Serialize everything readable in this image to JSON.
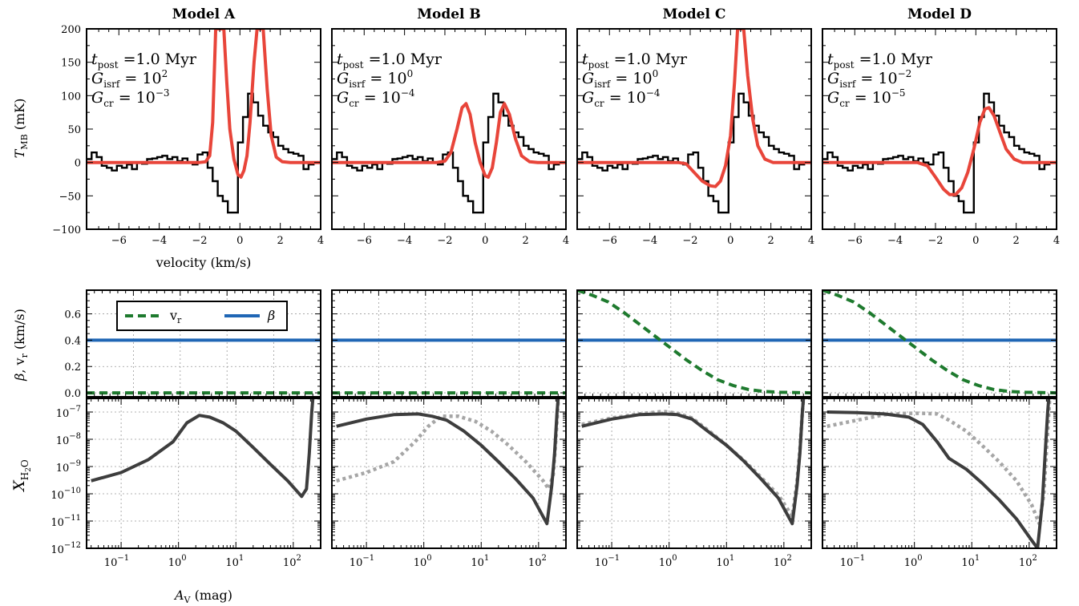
{
  "colors": {
    "model_line": "#e8453a",
    "observed": "#000000",
    "vr": "#1e7a2e",
    "beta": "#1f66b5",
    "x_solid": "#3d3d3d",
    "x_dotted": "#a6a6a6"
  },
  "axis_labels": {
    "top_y": "T_MB (mK)",
    "top_x": "velocity (km/s)",
    "mid_y": "β, v_r (km/s)",
    "bottom_y": "X_H2O",
    "bottom_x": "A_V (mag)"
  },
  "legend": {
    "vr": "v_r",
    "beta": "β",
    "position": "top-left (Model A middle panel)"
  },
  "ticks": {
    "velocity": [
      "−6",
      "−4",
      "−2",
      "0",
      "2",
      "4"
    ],
    "tmb": [
      "200",
      "150",
      "100",
      "50",
      "0",
      "−50",
      "−100"
    ],
    "mid": [
      "0.6",
      "0.4",
      "0.2",
      "0.0"
    ]
  },
  "chart_data": [
    {
      "type": "line",
      "title": "Model A",
      "annotation": {
        "t_post": "1.0 Myr",
        "g_isrf": "10^2",
        "g_cr": "10^-3"
      },
      "spectrum": {
        "xlim": [
          -7.6,
          4
        ],
        "ylim": [
          -100,
          200
        ],
        "model": [
          [
            -7.6,
            0
          ],
          [
            -2,
            0
          ],
          [
            -1.7,
            1
          ],
          [
            -1.5,
            10
          ],
          [
            -1.35,
            60
          ],
          [
            -1.2,
            200
          ],
          [
            -0.8,
            200
          ],
          [
            -0.65,
            120
          ],
          [
            -0.5,
            50
          ],
          [
            -0.3,
            5
          ],
          [
            -0.1,
            -18
          ],
          [
            0.05,
            -22
          ],
          [
            0.2,
            -12
          ],
          [
            0.35,
            10
          ],
          [
            0.5,
            60
          ],
          [
            0.7,
            150
          ],
          [
            0.85,
            200
          ],
          [
            1.15,
            200
          ],
          [
            1.35,
            110
          ],
          [
            1.55,
            40
          ],
          [
            1.8,
            8
          ],
          [
            2.1,
            1
          ],
          [
            2.5,
            0
          ],
          [
            4,
            0
          ]
        ]
      },
      "vr": {
        "x": [
          0,
          7.5
        ],
        "y": [
          0,
          0
        ]
      },
      "beta": 0.4,
      "abundance": {
        "solid": [
          [
            0.03,
            3e-10
          ],
          [
            0.1,
            6e-10
          ],
          [
            0.3,
            1.8e-09
          ],
          [
            0.8,
            8e-09
          ],
          [
            1.4,
            4e-08
          ],
          [
            2.3,
            7.5e-08
          ],
          [
            3.5,
            6.5e-08
          ],
          [
            6,
            4e-08
          ],
          [
            10,
            2e-08
          ],
          [
            20,
            5e-09
          ],
          [
            40,
            1.2e-09
          ],
          [
            80,
            3e-10
          ],
          [
            140,
            8e-11
          ],
          [
            170,
            1.5e-10
          ],
          [
            190,
            3e-09
          ],
          [
            210,
            1e-07
          ],
          [
            230,
            1e-06
          ]
        ]
      }
    },
    {
      "type": "line",
      "title": "Model B",
      "annotation": {
        "t_post": "1.0 Myr",
        "g_isrf": "10^0",
        "g_cr": "10^-4"
      },
      "spectrum": {
        "xlim": [
          -7.6,
          4
        ],
        "ylim": [
          -100,
          200
        ],
        "model": [
          [
            -7.6,
            0
          ],
          [
            -2.4,
            0
          ],
          [
            -2.0,
            2
          ],
          [
            -1.7,
            15
          ],
          [
            -1.4,
            50
          ],
          [
            -1.15,
            82
          ],
          [
            -0.95,
            88
          ],
          [
            -0.75,
            72
          ],
          [
            -0.5,
            30
          ],
          [
            -0.25,
            0
          ],
          [
            0,
            -20
          ],
          [
            0.15,
            -22
          ],
          [
            0.35,
            -8
          ],
          [
            0.55,
            30
          ],
          [
            0.75,
            75
          ],
          [
            0.95,
            88
          ],
          [
            1.2,
            72
          ],
          [
            1.5,
            35
          ],
          [
            1.8,
            10
          ],
          [
            2.2,
            1
          ],
          [
            2.6,
            0
          ],
          [
            4,
            0
          ]
        ]
      },
      "vr": {
        "x": [
          0,
          7.5
        ],
        "y": [
          0,
          0
        ]
      },
      "beta": 0.4,
      "abundance": {
        "solid": [
          [
            0.03,
            3e-08
          ],
          [
            0.1,
            5.5e-08
          ],
          [
            0.3,
            8e-08
          ],
          [
            0.8,
            8.5e-08
          ],
          [
            1.4,
            7e-08
          ],
          [
            2.5,
            5e-08
          ],
          [
            5,
            2e-08
          ],
          [
            10,
            6e-09
          ],
          [
            20,
            1.5e-09
          ],
          [
            40,
            3.5e-10
          ],
          [
            80,
            7e-11
          ],
          [
            140,
            8e-12
          ],
          [
            170,
            2e-10
          ],
          [
            190,
            3e-09
          ],
          [
            210,
            1e-07
          ],
          [
            230,
            1e-06
          ]
        ],
        "dotted": [
          [
            0.03,
            3e-10
          ],
          [
            0.1,
            6e-10
          ],
          [
            0.3,
            1.5e-09
          ],
          [
            0.7,
            8e-09
          ],
          [
            1.2,
            3e-08
          ],
          [
            2,
            7e-08
          ],
          [
            4,
            7e-08
          ],
          [
            8,
            4.5e-08
          ],
          [
            15,
            2e-08
          ],
          [
            30,
            6e-09
          ],
          [
            60,
            1.5e-09
          ],
          [
            120,
            3e-10
          ],
          [
            150,
            1.5e-10
          ],
          [
            180,
            5e-10
          ],
          [
            200,
            1e-08
          ],
          [
            220,
            3e-07
          ],
          [
            235,
            1e-06
          ]
        ]
      }
    },
    {
      "type": "line",
      "title": "Model C",
      "annotation": {
        "t_post": "1.0 Myr",
        "g_isrf": "10^0",
        "g_cr": "10^-4"
      },
      "spectrum": {
        "xlim": [
          -7.6,
          4
        ],
        "ylim": [
          -100,
          200
        ],
        "model": [
          [
            -7.6,
            0
          ],
          [
            -2.6,
            0
          ],
          [
            -2.2,
            -2
          ],
          [
            -1.8,
            -15
          ],
          [
            -1.4,
            -28
          ],
          [
            -1.0,
            -35
          ],
          [
            -0.75,
            -36
          ],
          [
            -0.5,
            -28
          ],
          [
            -0.25,
            -5
          ],
          [
            0,
            40
          ],
          [
            0.2,
            120
          ],
          [
            0.35,
            200
          ],
          [
            0.65,
            200
          ],
          [
            0.85,
            130
          ],
          [
            1.1,
            65
          ],
          [
            1.35,
            25
          ],
          [
            1.7,
            5
          ],
          [
            2.1,
            0
          ],
          [
            4,
            0
          ]
        ]
      },
      "vr": {
        "x": [
          0,
          0.5,
          1,
          1.5,
          2,
          2.5,
          3,
          3.5,
          4,
          4.5,
          5,
          5.5,
          6,
          6.5,
          7,
          7.5
        ],
        "y": [
          0.78,
          0.74,
          0.69,
          0.61,
          0.52,
          0.43,
          0.34,
          0.25,
          0.17,
          0.1,
          0.055,
          0.025,
          0.01,
          0.004,
          0.002,
          0.0
        ]
      },
      "beta": 0.4,
      "abundance": {
        "solid": [
          [
            0.03,
            3e-08
          ],
          [
            0.1,
            5.5e-08
          ],
          [
            0.3,
            8e-08
          ],
          [
            0.8,
            8.5e-08
          ],
          [
            1.4,
            8e-08
          ],
          [
            2.5,
            5.5e-08
          ],
          [
            5,
            1.8e-08
          ],
          [
            10,
            6e-09
          ],
          [
            20,
            1.6e-09
          ],
          [
            40,
            3.5e-10
          ],
          [
            80,
            7e-11
          ],
          [
            140,
            8e-12
          ],
          [
            170,
            2e-10
          ],
          [
            190,
            3e-09
          ],
          [
            210,
            1e-07
          ],
          [
            230,
            1e-06
          ]
        ],
        "dotted": [
          [
            0.03,
            3.5e-08
          ],
          [
            0.1,
            6e-08
          ],
          [
            0.3,
            8.5e-08
          ],
          [
            0.8,
            1.05e-07
          ],
          [
            1.4,
            9e-08
          ],
          [
            2.5,
            6e-08
          ],
          [
            5,
            2e-08
          ],
          [
            10,
            6e-09
          ],
          [
            20,
            1.7e-09
          ],
          [
            40,
            4e-10
          ],
          [
            80,
            9e-11
          ],
          [
            140,
            1.5e-11
          ],
          [
            170,
            3e-10
          ],
          [
            190,
            4e-09
          ],
          [
            210,
            1e-07
          ],
          [
            230,
            1e-06
          ]
        ]
      }
    },
    {
      "type": "line",
      "title": "Model D",
      "annotation": {
        "t_post": "1.0 Myr",
        "g_isrf": "10^-2",
        "g_cr": "10^-5"
      },
      "spectrum": {
        "xlim": [
          -7.6,
          4
        ],
        "ylim": [
          -100,
          200
        ],
        "model": [
          [
            -7.6,
            0
          ],
          [
            -2.9,
            0
          ],
          [
            -2.4,
            -5
          ],
          [
            -2.0,
            -22
          ],
          [
            -1.6,
            -40
          ],
          [
            -1.3,
            -48
          ],
          [
            -1.0,
            -48
          ],
          [
            -0.7,
            -38
          ],
          [
            -0.4,
            -15
          ],
          [
            -0.1,
            20
          ],
          [
            0.2,
            60
          ],
          [
            0.45,
            80
          ],
          [
            0.65,
            82
          ],
          [
            0.9,
            70
          ],
          [
            1.2,
            45
          ],
          [
            1.5,
            20
          ],
          [
            1.9,
            5
          ],
          [
            2.3,
            0
          ],
          [
            4,
            0
          ]
        ]
      },
      "vr": {
        "x": [
          0,
          0.5,
          1,
          1.5,
          2,
          2.5,
          3,
          3.5,
          4,
          4.5,
          5,
          5.5,
          6,
          6.5,
          7,
          7.5
        ],
        "y": [
          0.78,
          0.74,
          0.69,
          0.61,
          0.52,
          0.43,
          0.34,
          0.25,
          0.17,
          0.1,
          0.055,
          0.025,
          0.01,
          0.004,
          0.002,
          0.0
        ]
      },
      "beta": 0.4,
      "abundance": {
        "solid": [
          [
            0.03,
            1e-07
          ],
          [
            0.1,
            9.5e-08
          ],
          [
            0.3,
            8.5e-08
          ],
          [
            0.8,
            6.5e-08
          ],
          [
            1.4,
            3.5e-08
          ],
          [
            2.5,
            8e-09
          ],
          [
            4,
            2e-09
          ],
          [
            8,
            8e-10
          ],
          [
            15,
            2.5e-10
          ],
          [
            30,
            6e-11
          ],
          [
            60,
            1.2e-11
          ],
          [
            110,
            2e-12
          ],
          [
            140,
            1e-12
          ],
          [
            170,
            5e-11
          ],
          [
            190,
            3e-09
          ],
          [
            210,
            1e-07
          ],
          [
            230,
            1e-06
          ]
        ],
        "dotted": [
          [
            0.03,
            3e-08
          ],
          [
            0.1,
            5e-08
          ],
          [
            0.3,
            8e-08
          ],
          [
            0.8,
            9e-08
          ],
          [
            1.4,
            9e-08
          ],
          [
            2.5,
            8.5e-08
          ],
          [
            4,
            5e-08
          ],
          [
            8,
            2e-08
          ],
          [
            15,
            6e-09
          ],
          [
            30,
            1.5e-09
          ],
          [
            60,
            3e-10
          ],
          [
            110,
            4e-11
          ],
          [
            150,
            8e-12
          ],
          [
            180,
            1e-10
          ],
          [
            200,
            4e-09
          ],
          [
            220,
            1e-07
          ],
          [
            235,
            1e-06
          ]
        ]
      }
    }
  ]
}
